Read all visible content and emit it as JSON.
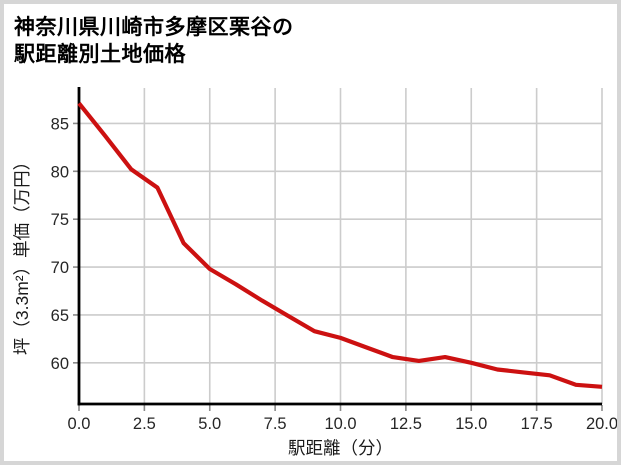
{
  "title": {
    "line1": "神奈川県川崎市多摩区栗谷の",
    "line2": "駅距離別土地価格"
  },
  "chart_data": {
    "type": "line",
    "title": "神奈川県川崎市多摩区栗谷の駅距離別土地価格",
    "xlabel": "駅距離（分）",
    "ylabel": "坪（3.3m²）単価（万円）",
    "x": [
      0,
      1,
      2,
      3,
      4,
      5,
      6,
      7,
      8,
      9,
      10,
      11,
      12,
      13,
      14,
      15,
      16,
      17,
      18,
      19,
      20
    ],
    "y": [
      87.1,
      83.7,
      80.2,
      78.3,
      72.5,
      69.8,
      68.2,
      66.5,
      64.9,
      63.3,
      62.6,
      61.6,
      60.6,
      60.2,
      60.6,
      60.0,
      59.3,
      59.0,
      58.7,
      57.7,
      57.5
    ],
    "xlim": [
      0,
      20
    ],
    "ylim": [
      55.7,
      88.7
    ],
    "xticks": [
      0,
      2.5,
      5,
      7.5,
      10,
      12.5,
      15,
      17.5,
      20
    ],
    "xtick_labels": [
      "0.0",
      "2.5",
      "5.0",
      "7.5",
      "10.0",
      "12.5",
      "15.0",
      "17.5",
      "20.0"
    ],
    "yticks": [
      60,
      65,
      70,
      75,
      80,
      85
    ],
    "ytick_labels": [
      "60",
      "65",
      "70",
      "75",
      "80",
      "85"
    ],
    "grid": true,
    "legend_position": "none",
    "line_color": "#cc1111",
    "line_width": 4.2,
    "grid_color": "#cccccc",
    "spine_color": "#000000",
    "tick_color": "#8a8a8a",
    "tick_label_color": "#262626",
    "axis_label_color": "#1a1a1a"
  },
  "colors": {
    "frame_border": "#d6d6d6",
    "background": "#ffffff"
  }
}
